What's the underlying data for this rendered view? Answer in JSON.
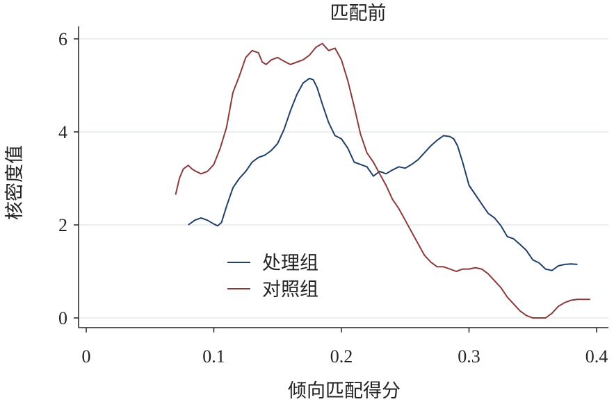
{
  "chart_data": {
    "type": "line",
    "title": "匹配前",
    "xlabel": "倾向匹配得分",
    "ylabel": "核密度值",
    "xlim": [
      0,
      0.4
    ],
    "ylim": [
      0,
      6
    ],
    "xticks": [
      "0",
      "0.1",
      "0.2",
      "0.3",
      "0.4"
    ],
    "yticks": [
      "0",
      "2",
      "4",
      "6"
    ],
    "grid": true,
    "legend_position": "bottom-left",
    "series": [
      {
        "name": "处理组",
        "color": "#1f3f68",
        "x": [
          0.08,
          0.085,
          0.09,
          0.095,
          0.1,
          0.103,
          0.106,
          0.11,
          0.115,
          0.12,
          0.125,
          0.13,
          0.135,
          0.14,
          0.145,
          0.15,
          0.155,
          0.16,
          0.165,
          0.17,
          0.175,
          0.178,
          0.181,
          0.185,
          0.19,
          0.195,
          0.2,
          0.205,
          0.21,
          0.215,
          0.22,
          0.225,
          0.23,
          0.235,
          0.24,
          0.245,
          0.25,
          0.255,
          0.26,
          0.265,
          0.27,
          0.275,
          0.28,
          0.285,
          0.288,
          0.291,
          0.295,
          0.3,
          0.305,
          0.31,
          0.315,
          0.32,
          0.325,
          0.33,
          0.335,
          0.34,
          0.345,
          0.35,
          0.355,
          0.36,
          0.365,
          0.37,
          0.375,
          0.38,
          0.385
        ],
        "y": [
          2.0,
          2.1,
          2.15,
          2.1,
          2.02,
          1.98,
          2.05,
          2.4,
          2.8,
          3.0,
          3.15,
          3.35,
          3.45,
          3.5,
          3.6,
          3.75,
          4.05,
          4.45,
          4.8,
          5.05,
          5.15,
          5.12,
          4.95,
          4.6,
          4.2,
          3.92,
          3.85,
          3.65,
          3.35,
          3.3,
          3.25,
          3.05,
          3.15,
          3.1,
          3.18,
          3.25,
          3.22,
          3.3,
          3.4,
          3.55,
          3.7,
          3.82,
          3.92,
          3.9,
          3.85,
          3.7,
          3.35,
          2.85,
          2.65,
          2.45,
          2.25,
          2.15,
          1.98,
          1.75,
          1.7,
          1.58,
          1.45,
          1.25,
          1.18,
          1.05,
          1.02,
          1.12,
          1.15,
          1.16,
          1.15
        ]
      },
      {
        "name": "对照组",
        "color": "#8b3a3a",
        "x": [
          0.07,
          0.073,
          0.076,
          0.08,
          0.083,
          0.086,
          0.09,
          0.095,
          0.1,
          0.105,
          0.11,
          0.115,
          0.12,
          0.125,
          0.13,
          0.135,
          0.138,
          0.141,
          0.145,
          0.15,
          0.155,
          0.16,
          0.165,
          0.17,
          0.175,
          0.18,
          0.185,
          0.19,
          0.195,
          0.2,
          0.205,
          0.21,
          0.215,
          0.22,
          0.225,
          0.23,
          0.235,
          0.24,
          0.245,
          0.25,
          0.255,
          0.26,
          0.265,
          0.27,
          0.275,
          0.28,
          0.285,
          0.29,
          0.295,
          0.3,
          0.305,
          0.31,
          0.315,
          0.32,
          0.325,
          0.33,
          0.335,
          0.34,
          0.345,
          0.35,
          0.355,
          0.36,
          0.365,
          0.37,
          0.375,
          0.38,
          0.385,
          0.39,
          0.395
        ],
        "y": [
          2.65,
          3.0,
          3.2,
          3.28,
          3.2,
          3.15,
          3.1,
          3.15,
          3.3,
          3.65,
          4.1,
          4.85,
          5.2,
          5.6,
          5.75,
          5.7,
          5.5,
          5.45,
          5.55,
          5.6,
          5.52,
          5.45,
          5.5,
          5.55,
          5.65,
          5.82,
          5.9,
          5.75,
          5.8,
          5.55,
          5.1,
          4.55,
          3.95,
          3.55,
          3.35,
          3.1,
          2.85,
          2.55,
          2.35,
          2.1,
          1.85,
          1.6,
          1.35,
          1.2,
          1.1,
          1.1,
          1.05,
          1.0,
          1.05,
          1.05,
          1.08,
          1.05,
          0.95,
          0.8,
          0.65,
          0.45,
          0.3,
          0.15,
          0.05,
          0.0,
          0.0,
          0.0,
          0.1,
          0.25,
          0.33,
          0.38,
          0.4,
          0.4,
          0.4
        ]
      }
    ]
  }
}
